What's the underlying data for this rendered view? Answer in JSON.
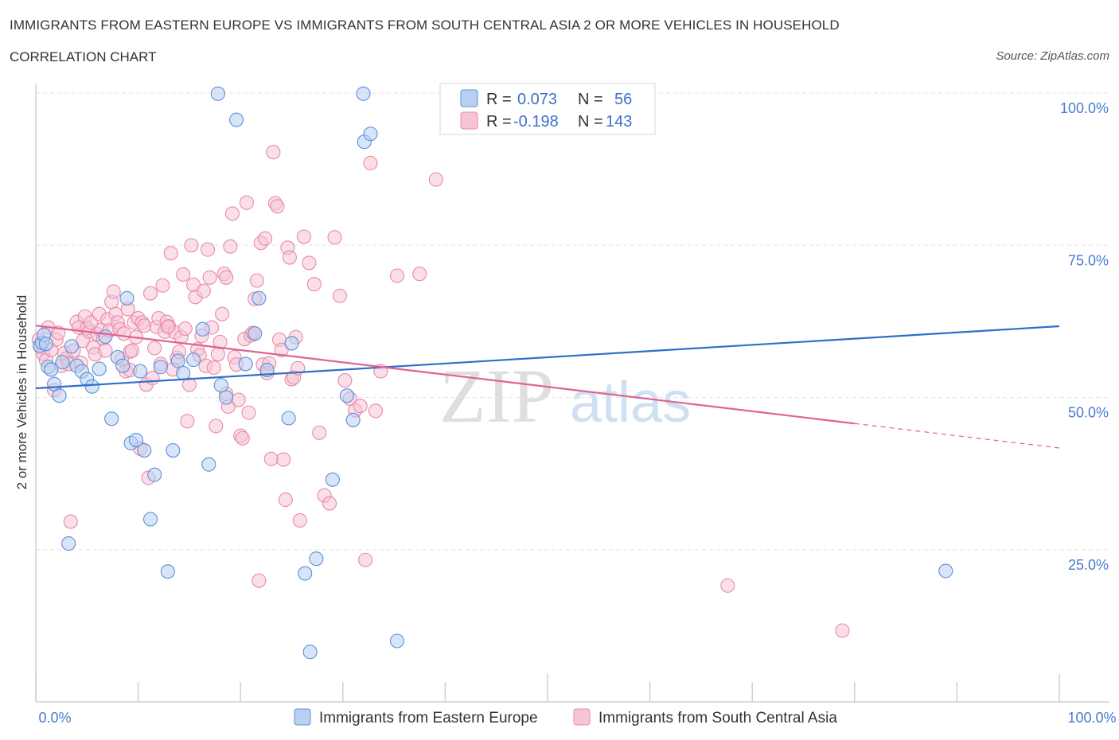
{
  "header": {
    "title": "IMMIGRANTS FROM EASTERN EUROPE VS IMMIGRANTS FROM SOUTH CENTRAL ASIA 2 OR MORE VEHICLES IN HOUSEHOLD",
    "subtitle": "CORRELATION CHART",
    "source": "Source: ZipAtlas.com"
  },
  "watermark": {
    "zip": "ZIP",
    "atlas": "atlas"
  },
  "legend": {
    "blue": {
      "r_label": "R =",
      "r_value": "0.073",
      "n_label": "N =",
      "n_value": "56"
    },
    "pink": {
      "r_label": "R =",
      "r_value": "-0.198",
      "n_label": "N =",
      "n_value": "143"
    }
  },
  "colors": {
    "blue": "#5b8fd6",
    "blue_fill": "#b8d0f2",
    "blue_line": "#2f6fc8",
    "pink": "#e98aa8",
    "pink_fill": "#f6c5d5",
    "pink_line": "#e0648d",
    "grid": "#e3e3e8",
    "tick": "#4a7bd0"
  },
  "chart_data": {
    "type": "scatter",
    "ylabel": "2 or more Vehicles in Household",
    "xlim": [
      0,
      100
    ],
    "ylim": [
      0,
      100
    ],
    "x_tick_labels": [
      "0.0%",
      "100.0%"
    ],
    "y_ticks": [
      {
        "value": 100,
        "label": "100.0%"
      },
      {
        "value": 75,
        "label": "75.0%"
      },
      {
        "value": 50,
        "label": "50.0%"
      },
      {
        "value": 25,
        "label": "25.0%"
      }
    ],
    "grid": true,
    "legend_placement": "top-center",
    "series": [
      {
        "name": "Immigrants from Eastern Europe",
        "color": "#5b8fd6",
        "trend": {
          "x0": 0,
          "y0": 51.5,
          "x1": 100,
          "y1": 61.7,
          "dashed_from": null
        },
        "points": [
          [
            0.4,
            58.5
          ],
          [
            0.6,
            59
          ],
          [
            0.8,
            60.3
          ],
          [
            1,
            58.8
          ],
          [
            1.2,
            55
          ],
          [
            1.5,
            54.6
          ],
          [
            1.8,
            52.2
          ],
          [
            2.3,
            50.3
          ],
          [
            2.6,
            55.8
          ],
          [
            3.2,
            26
          ],
          [
            3.5,
            58.4
          ],
          [
            4,
            55.2
          ],
          [
            4.5,
            54.3
          ],
          [
            5,
            53
          ],
          [
            5.5,
            51.8
          ],
          [
            6.2,
            54.7
          ],
          [
            6.8,
            60
          ],
          [
            7.4,
            46.5
          ],
          [
            8,
            56.6
          ],
          [
            8.5,
            55.2
          ],
          [
            8.9,
            66.3
          ],
          [
            9.3,
            42.5
          ],
          [
            9.8,
            43
          ],
          [
            10.2,
            54.3
          ],
          [
            10.6,
            41.3
          ],
          [
            11.2,
            30
          ],
          [
            11.6,
            37.3
          ],
          [
            12.2,
            55
          ],
          [
            12.9,
            21.4
          ],
          [
            13.4,
            41.3
          ],
          [
            13.9,
            56
          ],
          [
            14.4,
            54
          ],
          [
            15.4,
            56.2
          ],
          [
            16.3,
            61.2
          ],
          [
            16.9,
            39
          ],
          [
            18.1,
            52
          ],
          [
            18.6,
            50
          ],
          [
            19.6,
            95.6
          ],
          [
            20.5,
            55.5
          ],
          [
            21.4,
            60.5
          ],
          [
            21.8,
            66.3
          ],
          [
            22.6,
            54.5
          ],
          [
            24.7,
            46.6
          ],
          [
            25,
            58.9
          ],
          [
            26.3,
            21.1
          ],
          [
            26.8,
            8.2
          ],
          [
            27.4,
            23.5
          ],
          [
            29,
            36.5
          ],
          [
            30.4,
            50.3
          ],
          [
            31,
            46.3
          ],
          [
            32.1,
            92
          ],
          [
            32.7,
            93.3
          ],
          [
            35.3,
            10
          ],
          [
            88.9,
            21.5
          ],
          [
            17.8,
            99.9
          ],
          [
            32,
            99.9
          ]
        ]
      },
      {
        "name": "Immigrants from South Central Asia",
        "color": "#e98aa8",
        "trend": {
          "x0": 0,
          "y0": 61.8,
          "x1": 100,
          "y1": 41.7,
          "dashed_from": 80
        },
        "points": [
          [
            0.3,
            59.5
          ],
          [
            0.5,
            58.2
          ],
          [
            0.7,
            57.2
          ],
          [
            1,
            56.1
          ],
          [
            1.2,
            61.5
          ],
          [
            1.5,
            57.8
          ],
          [
            1.8,
            51.2
          ],
          [
            2,
            59.5
          ],
          [
            2.2,
            60.6
          ],
          [
            2.5,
            55.2
          ],
          [
            2.8,
            57.3
          ],
          [
            3,
            56.4
          ],
          [
            3.2,
            55.5
          ],
          [
            3.4,
            29.6
          ],
          [
            3.7,
            57.7
          ],
          [
            4,
            62.4
          ],
          [
            4.2,
            61.5
          ],
          [
            4.4,
            55.7
          ],
          [
            4.6,
            59.3
          ],
          [
            4.8,
            63.3
          ],
          [
            5,
            61.4
          ],
          [
            5.2,
            60.8
          ],
          [
            5.4,
            62.3
          ],
          [
            5.6,
            58.2
          ],
          [
            5.8,
            57.1
          ],
          [
            6,
            60.4
          ],
          [
            6.2,
            63.7
          ],
          [
            6.4,
            61.1
          ],
          [
            6.6,
            59.7
          ],
          [
            6.8,
            57.7
          ],
          [
            7,
            62.8
          ],
          [
            7.2,
            61
          ],
          [
            7.4,
            65.7
          ],
          [
            7.6,
            67.4
          ],
          [
            7.8,
            63.7
          ],
          [
            8,
            62.3
          ],
          [
            8.2,
            61.2
          ],
          [
            8.4,
            56.3
          ],
          [
            8.6,
            60.5
          ],
          [
            8.8,
            54.3
          ],
          [
            9,
            64.5
          ],
          [
            9.2,
            57.5
          ],
          [
            9.4,
            57.7
          ],
          [
            9.6,
            62.3
          ],
          [
            9.8,
            59.9
          ],
          [
            10,
            63
          ],
          [
            10.2,
            41.6
          ],
          [
            10.4,
            62.3
          ],
          [
            10.6,
            61.8
          ],
          [
            10.8,
            52.1
          ],
          [
            11,
            36.8
          ],
          [
            11.2,
            67.1
          ],
          [
            11.4,
            53.2
          ],
          [
            11.6,
            58.1
          ],
          [
            11.8,
            61.6
          ],
          [
            12,
            63
          ],
          [
            12.2,
            55.5
          ],
          [
            12.4,
            68.4
          ],
          [
            12.6,
            60.8
          ],
          [
            12.8,
            62.4
          ],
          [
            13,
            61.7
          ],
          [
            13.2,
            73.7
          ],
          [
            13.4,
            54.6
          ],
          [
            13.6,
            60.7
          ],
          [
            13.8,
            56.5
          ],
          [
            14,
            57.5
          ],
          [
            14.2,
            59.9
          ],
          [
            14.4,
            70.2
          ],
          [
            14.6,
            61.3
          ],
          [
            14.8,
            46.1
          ],
          [
            15,
            52.1
          ],
          [
            15.2,
            75
          ],
          [
            15.4,
            68.5
          ],
          [
            15.6,
            66.5
          ],
          [
            15.8,
            57.9
          ],
          [
            16,
            56.9
          ],
          [
            16.2,
            60.1
          ],
          [
            16.4,
            67.5
          ],
          [
            16.6,
            55.2
          ],
          [
            16.8,
            74.3
          ],
          [
            17,
            69.7
          ],
          [
            17.2,
            61.5
          ],
          [
            17.4,
            54.9
          ],
          [
            17.6,
            45.3
          ],
          [
            17.8,
            57.1
          ],
          [
            18,
            59.1
          ],
          [
            18.2,
            63.7
          ],
          [
            18.4,
            70.3
          ],
          [
            18.6,
            69.7
          ],
          [
            18.8,
            48.5
          ],
          [
            19,
            74.8
          ],
          [
            19.2,
            80.2
          ],
          [
            19.4,
            56.6
          ],
          [
            19.6,
            55.4
          ],
          [
            19.8,
            49.6
          ],
          [
            20,
            43.7
          ],
          [
            20.2,
            43.3
          ],
          [
            20.4,
            59.6
          ],
          [
            20.6,
            82
          ],
          [
            20.8,
            47.5
          ],
          [
            21,
            60.2
          ],
          [
            21.2,
            60.6
          ],
          [
            21.4,
            66.2
          ],
          [
            21.6,
            69.2
          ],
          [
            21.8,
            19.9
          ],
          [
            22,
            75.4
          ],
          [
            22.2,
            55.4
          ],
          [
            22.4,
            76.1
          ],
          [
            22.6,
            54
          ],
          [
            22.8,
            55.6
          ],
          [
            23,
            39.9
          ],
          [
            23.2,
            90.3
          ],
          [
            23.4,
            81.9
          ],
          [
            23.6,
            81.4
          ],
          [
            23.8,
            59.5
          ],
          [
            24,
            57.8
          ],
          [
            24.2,
            39.8
          ],
          [
            24.4,
            33.2
          ],
          [
            24.6,
            74.6
          ],
          [
            24.8,
            73
          ],
          [
            25,
            53
          ],
          [
            25.2,
            53.3
          ],
          [
            25.4,
            59.9
          ],
          [
            25.6,
            54.8
          ],
          [
            25.8,
            29.8
          ],
          [
            26.2,
            76.4
          ],
          [
            26.7,
            72.1
          ],
          [
            27.2,
            68.6
          ],
          [
            27.7,
            44.2
          ],
          [
            28.2,
            33.9
          ],
          [
            28.7,
            32.6
          ],
          [
            29.2,
            76.3
          ],
          [
            29.7,
            66.7
          ],
          [
            30.2,
            52.8
          ],
          [
            30.7,
            49.8
          ],
          [
            31.2,
            47.9
          ],
          [
            31.7,
            48.6
          ],
          [
            32.2,
            23.3
          ],
          [
            32.7,
            88.5
          ],
          [
            33.2,
            47.8
          ],
          [
            33.7,
            54.3
          ],
          [
            35.3,
            70
          ],
          [
            37.5,
            70.3
          ],
          [
            39.1,
            85.8
          ],
          [
            67.6,
            19.1
          ],
          [
            78.8,
            11.7
          ],
          [
            9.2,
            54.5
          ],
          [
            12.9,
            61.6
          ],
          [
            18.6,
            50.6
          ]
        ]
      }
    ]
  }
}
